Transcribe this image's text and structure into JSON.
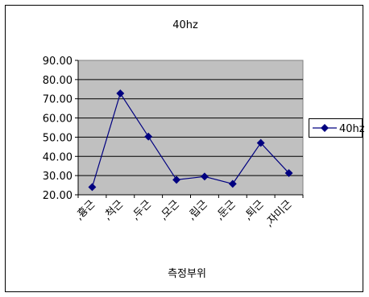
{
  "chart_data": {
    "type": "line",
    "title": "40hz",
    "xlabel": "측정부위",
    "ylabel": "",
    "categories": [
      ",흉근",
      ",척근",
      ",두근",
      ",모근",
      ",립근",
      ",둔근",
      ",퇴근",
      ",자미근"
    ],
    "series": [
      {
        "name": "40hz",
        "values": [
          24.0,
          72.8,
          50.3,
          27.8,
          29.5,
          25.7,
          47.0,
          31.3
        ]
      }
    ],
    "ylim": [
      20,
      90
    ],
    "yticks": [
      "20.00",
      "30.00",
      "40.00",
      "50.00",
      "60.00",
      "70.00",
      "80.00",
      "90.00"
    ],
    "grid": true,
    "legend_position": "right",
    "colors": {
      "plot_background": "#c0c0c0",
      "series": "#000080",
      "gridline": "#000000"
    }
  }
}
